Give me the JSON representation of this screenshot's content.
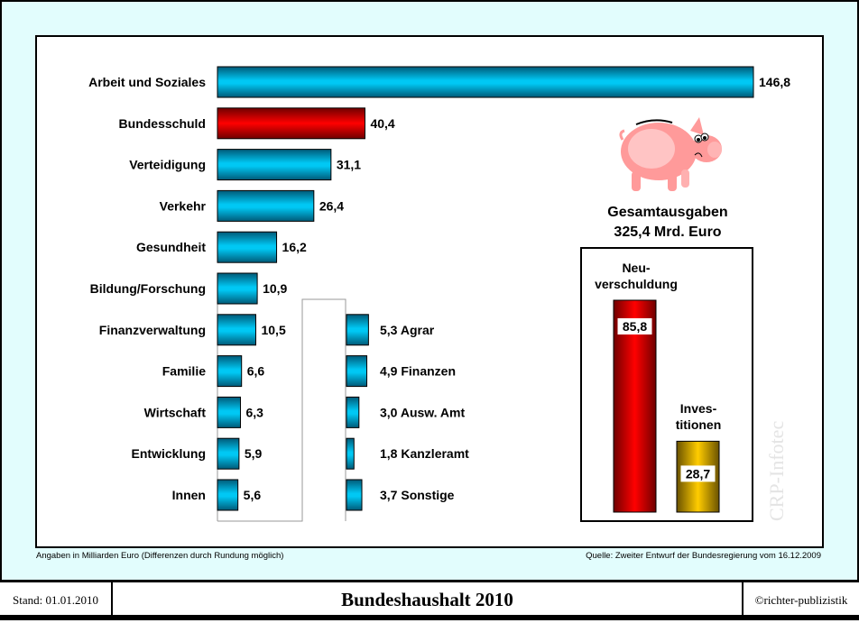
{
  "chart_data": [
    {
      "type": "bar",
      "orientation": "horizontal",
      "categories": [
        "Arbeit und Soziales",
        "Bundesschuld",
        "Verteidigung",
        "Verkehr",
        "Gesundheit",
        "Bildung/Forschung",
        "Finanzverwaltung",
        "Familie",
        "Wirtschaft",
        "Entwicklung",
        "Innen"
      ],
      "values": [
        146.8,
        40.4,
        31.1,
        26.4,
        16.2,
        10.9,
        10.5,
        6.6,
        6.3,
        5.9,
        5.6
      ],
      "labels": [
        "146,8",
        "40,4",
        "31,1",
        "26,4",
        "16,2",
        "10,9",
        "10,5",
        "6,6",
        "6,3",
        "5,9",
        "5,6"
      ],
      "highlight": {
        "Bundesschuld": "#e00000"
      },
      "color": "#00b8e6"
    },
    {
      "type": "bar",
      "orientation": "horizontal",
      "categories": [
        "Agrar",
        "Finanzen",
        "Ausw. Amt",
        "Kanzleramt",
        "Sonstige"
      ],
      "values": [
        5.3,
        4.9,
        3.0,
        1.8,
        3.7
      ],
      "labels": [
        "5,3 Agrar",
        "4,9 Finanzen",
        "3,0 Ausw. Amt",
        "1,8 Kanzleramt",
        "3,7 Sonstige"
      ],
      "color": "#00b8e6"
    },
    {
      "type": "bar",
      "orientation": "vertical",
      "categories": [
        "Neu-verschuldung",
        "Inves-titionen"
      ],
      "category_lines": [
        [
          "Neu-",
          "verschuldung"
        ],
        [
          "Inves-",
          "titionen"
        ]
      ],
      "values": [
        85.8,
        28.7
      ],
      "labels": [
        "85,8",
        "28,7"
      ],
      "colors": [
        "#e00000",
        "#e0b400"
      ]
    }
  ],
  "summary": {
    "line1": "Gesamtausgaben",
    "line2": "325,4 Mrd. Euro"
  },
  "watermark": "CRP-Infotec",
  "notes": {
    "left": "Angaben in Milliarden Euro (Differenzen durch Rundung möglich)",
    "right": "Quelle: Zweiter Entwurf der Bundesregierung vom 16.12.2009"
  },
  "footer": {
    "stand": "Stand: 01.01.2010",
    "title": "Bundeshaushalt 2010",
    "copyright": "©richter-publizistik"
  }
}
